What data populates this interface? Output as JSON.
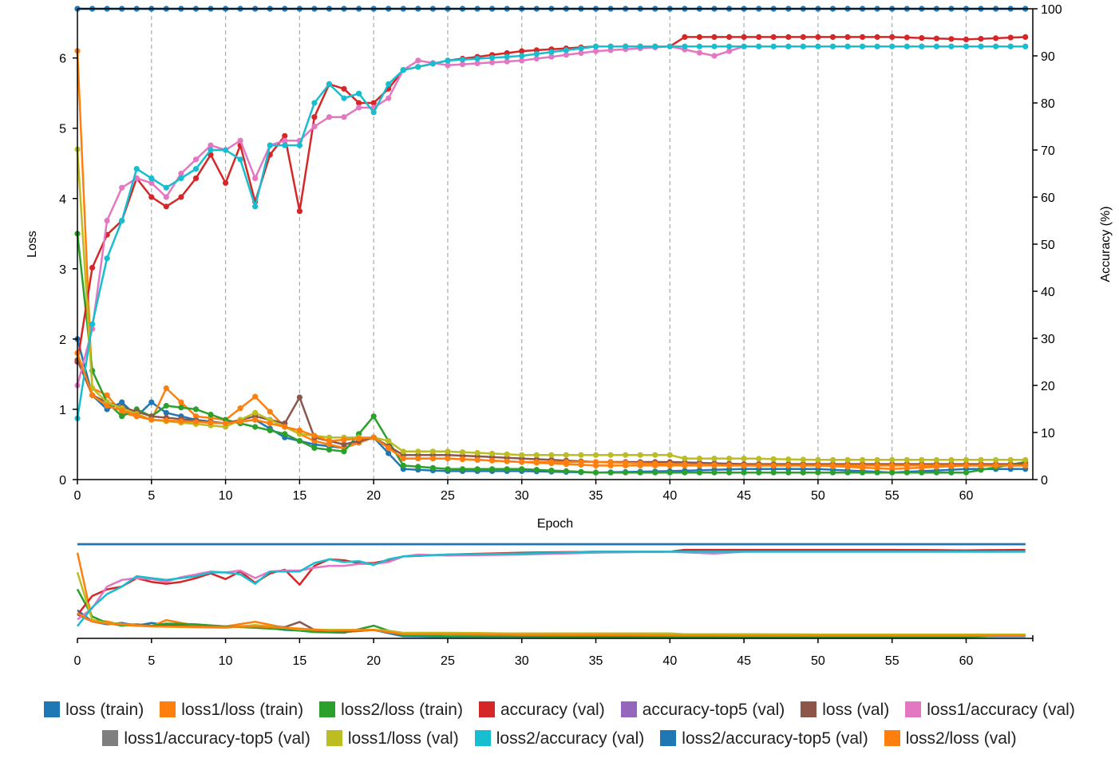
{
  "chart_data": {
    "type": "line",
    "xlabel": "Epoch",
    "ylabel_left": "Loss",
    "ylabel_right": "Accuracy (%)",
    "xlim": [
      0,
      64.5
    ],
    "ylim_left": [
      0,
      6.7
    ],
    "ylim_right": [
      0,
      100
    ],
    "x_ticks": [
      0,
      5,
      10,
      15,
      20,
      25,
      30,
      35,
      40,
      45,
      50,
      55,
      60
    ],
    "y_left_ticks": [
      0,
      1,
      2,
      3,
      4,
      5,
      6
    ],
    "y_right_ticks": [
      0,
      10,
      20,
      30,
      40,
      50,
      60,
      70,
      80,
      90,
      100
    ],
    "grid": "vertical dashed at every 5 epochs",
    "overview_panel": "full-range brush overview below main plot",
    "series": [
      {
        "name": "loss (train)",
        "color": "#1f77b4",
        "axis": "left",
        "x": [
          0,
          1,
          2,
          3,
          4,
          5,
          6,
          8,
          10,
          12,
          14,
          16,
          18,
          20,
          22,
          25,
          30,
          35,
          40,
          45,
          50,
          55,
          60,
          64
        ],
        "values": [
          2.0,
          1.2,
          1.0,
          1.1,
          0.9,
          1.1,
          0.95,
          0.85,
          0.8,
          0.85,
          0.6,
          0.5,
          0.45,
          0.6,
          0.15,
          0.12,
          0.12,
          0.1,
          0.12,
          0.15,
          0.15,
          0.1,
          0.15,
          0.15
        ]
      },
      {
        "name": "loss1/loss (train)",
        "color": "#ff7f0e",
        "axis": "left",
        "x": [
          0,
          1,
          2,
          3,
          4,
          5,
          6,
          8,
          10,
          12,
          14,
          16,
          18,
          20,
          22,
          25,
          30,
          35,
          40,
          45,
          50,
          55,
          60,
          64
        ],
        "values": [
          6.1,
          1.3,
          1.2,
          0.95,
          0.9,
          0.85,
          1.3,
          0.9,
          0.85,
          1.18,
          0.75,
          0.55,
          0.45,
          0.6,
          0.3,
          0.3,
          0.25,
          0.2,
          0.2,
          0.2,
          0.2,
          0.15,
          0.2,
          0.2
        ]
      },
      {
        "name": "loss2/loss (train)",
        "color": "#2ca02c",
        "axis": "left",
        "x": [
          0,
          1,
          2,
          3,
          4,
          5,
          6,
          8,
          10,
          12,
          14,
          16,
          18,
          20,
          22,
          25,
          30,
          35,
          40,
          45,
          50,
          55,
          60,
          64
        ],
        "values": [
          3.5,
          1.55,
          1.1,
          0.9,
          1.0,
          0.9,
          1.05,
          1.0,
          0.85,
          0.75,
          0.65,
          0.45,
          0.4,
          0.9,
          0.2,
          0.15,
          0.15,
          0.1,
          0.1,
          0.1,
          0.1,
          0.1,
          0.1,
          0.25
        ]
      },
      {
        "name": "accuracy (val)",
        "color": "#d62728",
        "axis": "right",
        "x": [
          0,
          1,
          2,
          3,
          4,
          5,
          6,
          7,
          8,
          9,
          10,
          11,
          12,
          13,
          14,
          15,
          16,
          17,
          18,
          19,
          20,
          21,
          22,
          25,
          30,
          35,
          40,
          41,
          45,
          50,
          55,
          60,
          64
        ],
        "values": [
          25,
          45,
          52,
          55,
          64,
          60,
          58,
          60,
          64,
          69,
          63,
          71,
          59,
          69,
          73,
          57,
          77,
          84,
          83,
          80,
          80,
          83,
          87,
          89,
          91,
          92,
          92,
          94,
          94,
          94,
          94,
          93.5,
          94
        ]
      },
      {
        "name": "accuracy-top5 (val)",
        "color": "#9467bd",
        "axis": "right",
        "x": [
          0,
          64
        ],
        "values": [
          100,
          100
        ]
      },
      {
        "name": "loss (val)",
        "color": "#8c564b",
        "axis": "left",
        "x": [
          0,
          1,
          2,
          5,
          10,
          12,
          14,
          15,
          16,
          18,
          20,
          22,
          25,
          30,
          35,
          40,
          45,
          50,
          55,
          60,
          64
        ],
        "values": [
          1.7,
          1.2,
          1.1,
          0.9,
          0.8,
          0.9,
          0.8,
          1.17,
          0.6,
          0.5,
          0.6,
          0.35,
          0.35,
          0.3,
          0.25,
          0.25,
          0.22,
          0.22,
          0.22,
          0.22,
          0.22
        ]
      },
      {
        "name": "loss1/accuracy (val)",
        "color": "#e377c2",
        "axis": "right",
        "x": [
          0,
          1,
          2,
          3,
          4,
          5,
          6,
          7,
          8,
          9,
          10,
          11,
          12,
          13,
          14,
          15,
          16,
          17,
          18,
          19,
          20,
          21,
          22,
          23,
          25,
          30,
          35,
          40,
          43,
          45,
          50,
          55,
          60,
          64
        ],
        "values": [
          20,
          32,
          55,
          62,
          64,
          63,
          60,
          65,
          68,
          71,
          70,
          72,
          64,
          71,
          72,
          72,
          75,
          77,
          77,
          79,
          79,
          81,
          87,
          89,
          88,
          89,
          91,
          92,
          90,
          92,
          92,
          92,
          92,
          92
        ]
      },
      {
        "name": "loss1/accuracy-top5 (val)",
        "color": "#7f7f7f",
        "axis": "right",
        "x": [
          0,
          64
        ],
        "values": [
          100,
          100
        ]
      },
      {
        "name": "loss1/loss (val)",
        "color": "#bcbd22",
        "axis": "left",
        "x": [
          0,
          1,
          2,
          5,
          10,
          12,
          15,
          17,
          20,
          21,
          22,
          25,
          30,
          35,
          40,
          41,
          45,
          50,
          55,
          60,
          64
        ],
        "values": [
          4.7,
          1.3,
          1.1,
          0.85,
          0.75,
          0.95,
          0.65,
          0.6,
          0.6,
          0.55,
          0.4,
          0.4,
          0.35,
          0.35,
          0.35,
          0.3,
          0.3,
          0.28,
          0.28,
          0.28,
          0.28
        ]
      },
      {
        "name": "loss2/accuracy (val)",
        "color": "#17becf",
        "axis": "right",
        "x": [
          0,
          1,
          2,
          3,
          4,
          5,
          6,
          7,
          8,
          9,
          10,
          11,
          12,
          13,
          14,
          15,
          16,
          17,
          18,
          19,
          20,
          21,
          22,
          25,
          30,
          35,
          40,
          45,
          50,
          55,
          60,
          64
        ],
        "values": [
          13,
          33,
          47,
          55,
          66,
          64,
          62,
          64,
          66,
          70,
          70,
          68,
          58,
          71,
          71,
          71,
          80,
          84,
          81,
          82,
          78,
          84,
          87,
          89,
          90,
          92,
          92,
          92,
          92,
          92,
          92,
          92
        ]
      },
      {
        "name": "loss2/accuracy-top5 (val)",
        "color": "#1f77b4",
        "axis": "right",
        "x": [
          0,
          64
        ],
        "values": [
          100,
          100
        ]
      },
      {
        "name": "loss2/loss (val)",
        "color": "#ff7f0e",
        "axis": "left",
        "x": [
          0,
          1,
          2,
          5,
          10,
          12,
          15,
          17,
          20,
          21,
          22,
          25,
          30,
          35,
          40,
          45,
          50,
          55,
          60,
          64
        ],
        "values": [
          1.8,
          1.2,
          1.05,
          0.85,
          0.8,
          0.85,
          0.7,
          0.55,
          0.6,
          0.45,
          0.3,
          0.3,
          0.25,
          0.25,
          0.22,
          0.2,
          0.2,
          0.2,
          0.2,
          0.2
        ]
      }
    ]
  }
}
